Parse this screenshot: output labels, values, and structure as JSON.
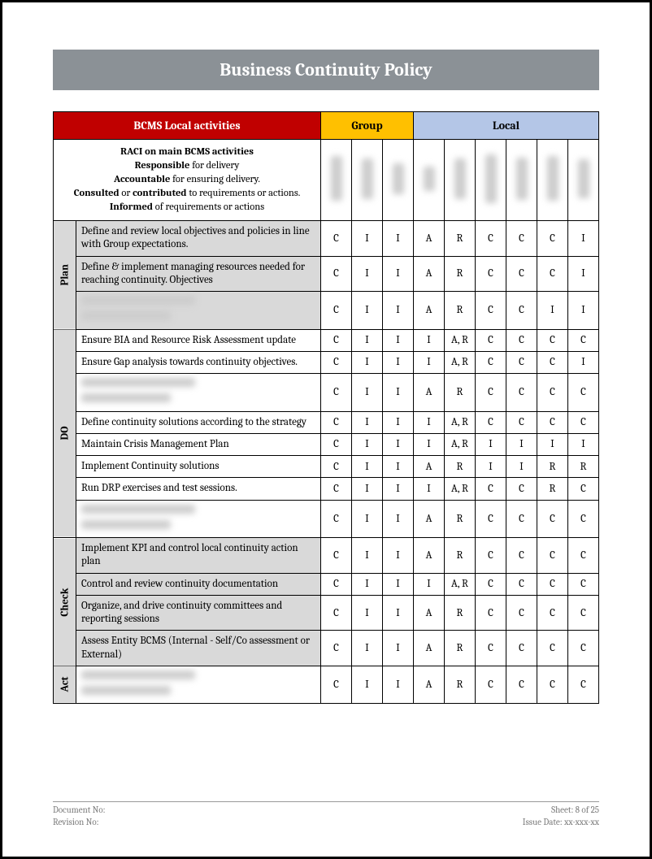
{
  "title": "Business Continuity Policy",
  "headers": {
    "col1": "BCMS Local activities",
    "group": "Group",
    "local": "Local"
  },
  "raci_html": "<b>RACI on main BCMS activities</b><br><b>Responsible</b> for delivery<br><b>Accountable</b> for ensuring delivery.<br><b>Consulted</b> or <b>contributed</b> to requirements or actions.<br><b>Informed</b> of requirements or actions",
  "phases": [
    {
      "name": "Plan",
      "shaded": true,
      "rows": [
        {
          "activity": "Define and review local objectives and policies in line with Group expectations.",
          "vals": [
            "C",
            "I",
            "I",
            "A",
            "R",
            "C",
            "C",
            "C",
            "I"
          ],
          "blurred": false
        },
        {
          "activity": "Define & implement managing resources needed for reaching continuity. Objectives",
          "vals": [
            "C",
            "I",
            "I",
            "A",
            "R",
            "C",
            "C",
            "C",
            "I"
          ],
          "blurred": false
        },
        {
          "activity": "",
          "vals": [
            "C",
            "I",
            "I",
            "A",
            "R",
            "C",
            "C",
            "I",
            "I"
          ],
          "blurred": true
        }
      ]
    },
    {
      "name": "DO",
      "shaded": false,
      "rows": [
        {
          "activity": "Ensure BIA and Resource Risk Assessment update",
          "vals": [
            "C",
            "I",
            "I",
            "I",
            "A, R",
            "C",
            "C",
            "C",
            "C"
          ],
          "blurred": false
        },
        {
          "activity": "Ensure Gap analysis towards continuity objectives.",
          "vals": [
            "C",
            "I",
            "I",
            "I",
            "A, R",
            "C",
            "C",
            "C",
            "I"
          ],
          "blurred": false
        },
        {
          "activity": "",
          "vals": [
            "C",
            "I",
            "I",
            "A",
            "R",
            "C",
            "C",
            "C",
            "C"
          ],
          "blurred": true
        },
        {
          "activity": "Define continuity solutions according to the strategy",
          "vals": [
            "C",
            "I",
            "I",
            "I",
            "A, R",
            "C",
            "C",
            "C",
            "C"
          ],
          "blurred": false
        },
        {
          "activity": "Maintain Crisis Management Plan",
          "vals": [
            "C",
            "I",
            "I",
            "I",
            "A, R",
            "I",
            "I",
            "I",
            "I"
          ],
          "blurred": false
        },
        {
          "activity": "Implement Continuity solutions",
          "vals": [
            "C",
            "I",
            "I",
            "A",
            "R",
            "I",
            "I",
            "R",
            "R"
          ],
          "blurred": false
        },
        {
          "activity": "Run DRP exercises and test sessions.",
          "vals": [
            "C",
            "I",
            "I",
            "I",
            "A, R",
            "C",
            "C",
            "R",
            "C"
          ],
          "blurred": false
        },
        {
          "activity": "",
          "vals": [
            "C",
            "I",
            "I",
            "A",
            "R",
            "C",
            "C",
            "C",
            "C"
          ],
          "blurred": true
        }
      ]
    },
    {
      "name": "Check",
      "shaded": true,
      "rows": [
        {
          "activity": "Implement KPI and control local continuity action plan",
          "vals": [
            "C",
            "I",
            "I",
            "A",
            "R",
            "C",
            "C",
            "C",
            "C"
          ],
          "blurred": false
        },
        {
          "activity": "Control and review continuity documentation",
          "vals": [
            "C",
            "I",
            "I",
            "I",
            "A, R",
            "C",
            "C",
            "C",
            "C"
          ],
          "blurred": false
        },
        {
          "activity": "Organize, and drive continuity committees and reporting sessions",
          "vals": [
            "C",
            "I",
            "I",
            "A",
            "R",
            "C",
            "C",
            "C",
            "C"
          ],
          "blurred": false
        },
        {
          "activity": "Assess Entity BCMS (Internal - Self/Co assessment or External)",
          "vals": [
            "C",
            "I",
            "I",
            "A",
            "R",
            "C",
            "C",
            "C",
            "C"
          ],
          "blurred": false
        }
      ]
    },
    {
      "name": "Act",
      "shaded": false,
      "rows": [
        {
          "activity": "",
          "vals": [
            "C",
            "I",
            "I",
            "A",
            "R",
            "C",
            "C",
            "C",
            "C"
          ],
          "blurred": true
        }
      ]
    }
  ],
  "footer": {
    "doc_no_label": "Document No:",
    "rev_no_label": "Revision No:",
    "sheet_label": "Sheet: 8 of 25",
    "issue_label": "Issue Date: xx-xxx-xx"
  },
  "colors": {
    "title_bg": "#8b9196",
    "red": "#c00000",
    "yellow": "#ffc000",
    "blue": "#b4c6e7",
    "shaded": "#d9d9d9"
  }
}
